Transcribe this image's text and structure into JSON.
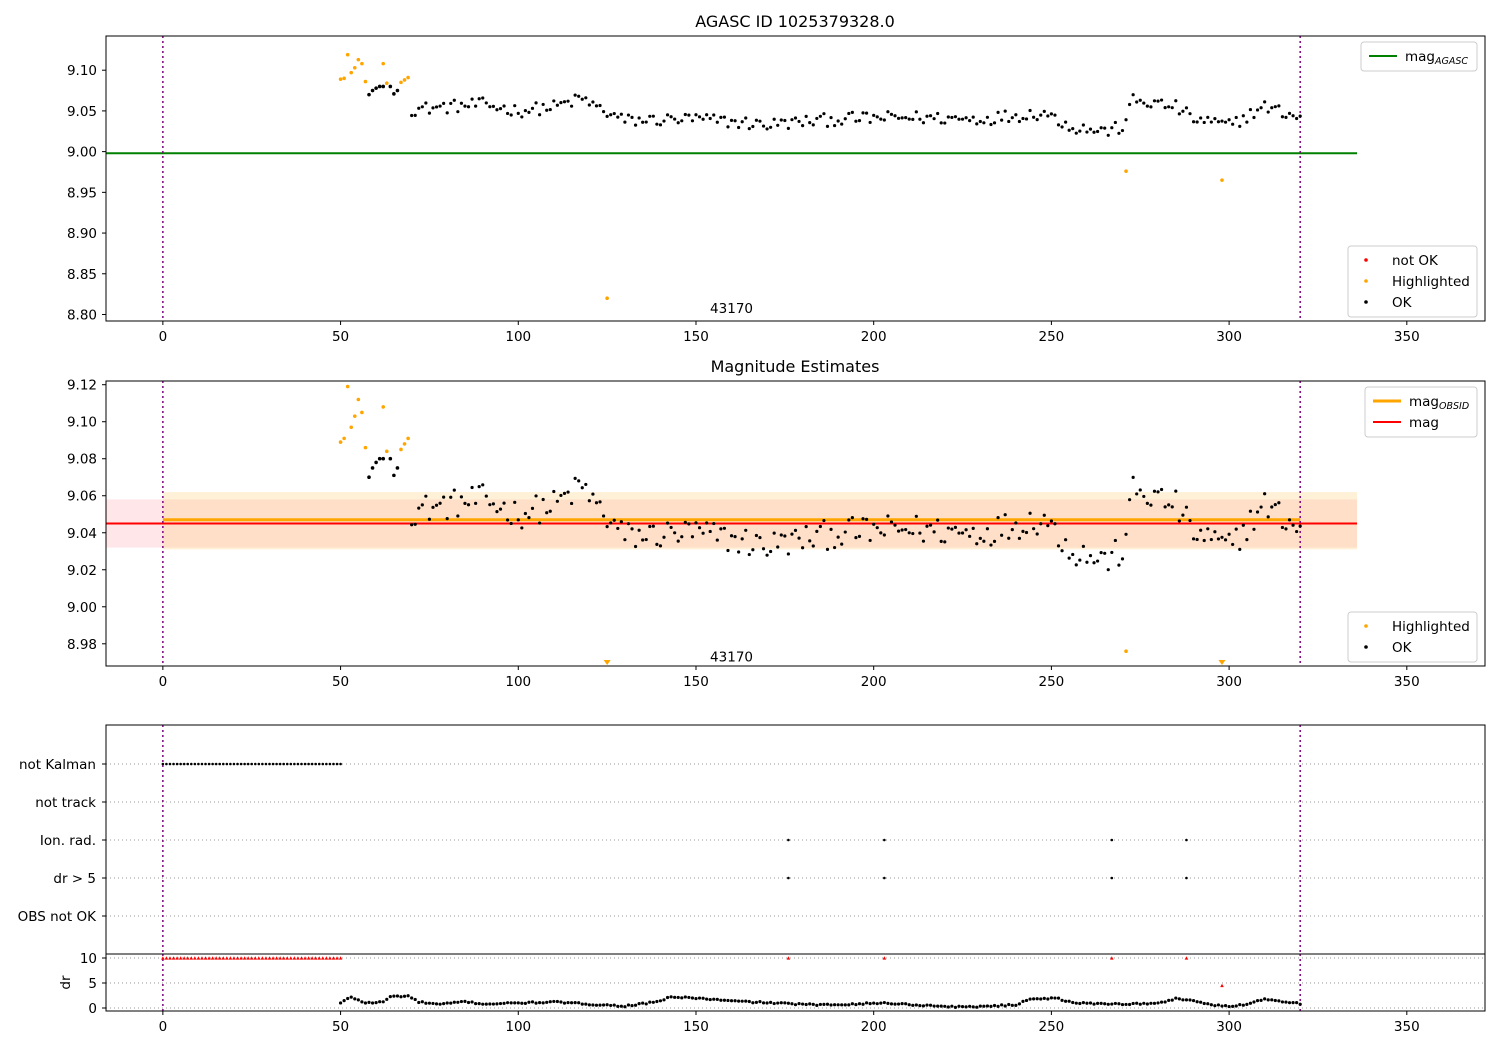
{
  "figure": {
    "title_top": "AGASC ID 1025379328.0",
    "title_mid": "Magnitude Estimates",
    "annotation": "43170"
  },
  "chart_data": [
    {
      "id": "top",
      "type": "scatter",
      "title": "AGASC ID 1025379328.0",
      "xlim": [
        -16,
        372
      ],
      "ylim": [
        8.792,
        9.142
      ],
      "xticks": [
        0,
        50,
        100,
        150,
        200,
        250,
        300,
        350
      ],
      "yticks": [
        8.8,
        8.85,
        8.9,
        8.95,
        9.0,
        9.05,
        9.1
      ],
      "vlines": [
        0,
        320
      ],
      "hlines": [
        {
          "name": "mag_AGASC",
          "y": 8.998,
          "x0": -16,
          "x1": 336,
          "color": "#008000"
        }
      ],
      "annotation": {
        "text": "43170",
        "x": 160,
        "y": 8.808
      },
      "legend_lines": [
        {
          "label": "mag",
          "sub": "AGASC",
          "color": "#008000"
        }
      ],
      "legend_markers": [
        {
          "label": "not OK",
          "color": "#ff0000"
        },
        {
          "label": "Highlighted",
          "color": "#ffa500"
        },
        {
          "label": "OK",
          "color": "#000000"
        }
      ],
      "series": [
        {
          "name": "Highlighted",
          "color": "#ffa500",
          "x": [
            50,
            51,
            52,
            53,
            54,
            55,
            56,
            57,
            62,
            63,
            67,
            68,
            69,
            125,
            271,
            298
          ],
          "y": [
            9.089,
            9.09,
            9.119,
            9.097,
            9.103,
            9.113,
            9.108,
            9.086,
            9.108,
            9.084,
            9.085,
            9.088,
            9.091,
            8.82,
            8.976,
            8.965
          ]
        },
        {
          "name": "OK",
          "color": "#000000",
          "x": [
            58,
            59,
            60,
            61,
            62,
            64,
            65,
            66
          ],
          "y": [
            9.07,
            9.075,
            9.078,
            9.08,
            9.08,
            9.08,
            9.071,
            9.075
          ]
        }
      ],
      "ok_trend": {
        "color": "#000000",
        "x_from": 70,
        "x_to": 320,
        "step": 1,
        "knots": [
          [
            70,
            9.052
          ],
          [
            90,
            9.058
          ],
          [
            100,
            9.05
          ],
          [
            110,
            9.055
          ],
          [
            118,
            9.065
          ],
          [
            124,
            9.05
          ],
          [
            130,
            9.038
          ],
          [
            150,
            9.04
          ],
          [
            170,
            9.033
          ],
          [
            190,
            9.04
          ],
          [
            210,
            9.042
          ],
          [
            230,
            9.04
          ],
          [
            248,
            9.048
          ],
          [
            256,
            9.03
          ],
          [
            265,
            9.025
          ],
          [
            270,
            9.03
          ],
          [
            273,
            9.063
          ],
          [
            285,
            9.055
          ],
          [
            290,
            9.04
          ],
          [
            300,
            9.032
          ],
          [
            310,
            9.055
          ],
          [
            320,
            9.042
          ]
        ],
        "jitter": 0.008
      }
    },
    {
      "id": "middle",
      "type": "scatter",
      "title": "Magnitude Estimates",
      "xlim": [
        -16,
        372
      ],
      "ylim": [
        8.968,
        9.122
      ],
      "xticks": [
        0,
        50,
        100,
        150,
        200,
        250,
        300,
        350
      ],
      "yticks": [
        8.98,
        9.0,
        9.02,
        9.04,
        9.06,
        9.08,
        9.1,
        9.12
      ],
      "vlines": [
        0,
        320
      ],
      "bands": [
        {
          "x0": -16,
          "x1": 336,
          "y0": 9.032,
          "y1": 9.058,
          "color": "#ffb6c1",
          "opacity": 0.35
        },
        {
          "x0": 0,
          "x1": 336,
          "y0": 9.031,
          "y1": 9.062,
          "color": "#ffd27f",
          "opacity": 0.3
        }
      ],
      "hlines": [
        {
          "name": "mag_OBSID",
          "y": 9.047,
          "x0": 0,
          "x1": 320,
          "color": "#ffa500",
          "width": 3
        },
        {
          "name": "mag",
          "y": 9.045,
          "x0": -16,
          "x1": 336,
          "color": "#ff0000",
          "width": 2
        }
      ],
      "annotation": {
        "text": "43170",
        "x": 160,
        "y": 8.973
      },
      "legend_lines": [
        {
          "label": "mag",
          "sub": "OBSID",
          "color": "#ffa500"
        },
        {
          "label": "mag",
          "sub": "",
          "color": "#ff0000"
        }
      ],
      "legend_markers": [
        {
          "label": "Highlighted",
          "color": "#ffa500"
        },
        {
          "label": "OK",
          "color": "#000000"
        }
      ],
      "series": [
        {
          "name": "Highlighted",
          "color": "#ffa500",
          "x": [
            50,
            51,
            52,
            53,
            54,
            55,
            56,
            57,
            62,
            63,
            67,
            68,
            69,
            271
          ],
          "y": [
            9.089,
            9.091,
            9.119,
            9.097,
            9.103,
            9.112,
            9.105,
            9.086,
            9.108,
            9.084,
            9.085,
            9.088,
            9.091,
            8.976
          ]
        },
        {
          "name": "OK",
          "color": "#000000",
          "x": [
            58,
            59,
            60,
            61,
            62,
            64,
            65,
            66
          ],
          "y": [
            9.07,
            9.075,
            9.078,
            9.08,
            9.08,
            9.08,
            9.071,
            9.075
          ]
        }
      ],
      "clipped_markers": {
        "color": "#ffa500",
        "x": [
          125,
          298
        ]
      },
      "ok_trend": {
        "color": "#000000",
        "x_from": 70,
        "x_to": 320,
        "step": 1,
        "knots": [
          [
            70,
            9.052
          ],
          [
            90,
            9.058
          ],
          [
            100,
            9.05
          ],
          [
            110,
            9.055
          ],
          [
            118,
            9.065
          ],
          [
            124,
            9.05
          ],
          [
            130,
            9.038
          ],
          [
            150,
            9.04
          ],
          [
            170,
            9.033
          ],
          [
            190,
            9.04
          ],
          [
            210,
            9.042
          ],
          [
            230,
            9.04
          ],
          [
            248,
            9.048
          ],
          [
            256,
            9.03
          ],
          [
            265,
            9.025
          ],
          [
            270,
            9.03
          ],
          [
            273,
            9.063
          ],
          [
            285,
            9.055
          ],
          [
            290,
            9.04
          ],
          [
            300,
            9.032
          ],
          [
            310,
            9.055
          ],
          [
            320,
            9.042
          ]
        ],
        "jitter": 0.008
      }
    },
    {
      "id": "flags",
      "type": "scatter",
      "xlim": [
        -16,
        372
      ],
      "categories": [
        "not Kalman",
        "not track",
        "Ion. rad.",
        "dr > 5",
        "OBS not OK"
      ],
      "vlines": [
        0,
        320
      ],
      "series": [
        {
          "name": "not Kalman",
          "color": "#000000",
          "x_range": [
            0,
            50
          ]
        },
        {
          "name": "Ion. rad.",
          "color": "#000000",
          "x": [
            176,
            203,
            267,
            288
          ]
        },
        {
          "name": "dr > 5",
          "color": "#000000",
          "x": [
            176,
            203,
            267,
            288
          ]
        }
      ]
    },
    {
      "id": "dr",
      "type": "scatter",
      "ylabel": "dr",
      "xlim": [
        -16,
        372
      ],
      "ylim": [
        -0.6,
        10.8
      ],
      "xticks": [
        0,
        50,
        100,
        150,
        200,
        250,
        300,
        350
      ],
      "yticks": [
        0,
        5,
        10
      ],
      "vlines": [
        0,
        320
      ],
      "series": [
        {
          "name": "dr > 5",
          "color": "#ff0000",
          "x_range": [
            0,
            50
          ],
          "y_const": 10
        },
        {
          "name": "dr > 5 extra",
          "color": "#ff0000",
          "x": [
            176,
            203,
            267,
            288,
            298
          ],
          "y": [
            10,
            10,
            10,
            10,
            4.5
          ]
        }
      ],
      "ok_trend": {
        "color": "#000000",
        "x_from": 50,
        "x_to": 320,
        "step": 1,
        "knots": [
          [
            50,
            1.0
          ],
          [
            53,
            2.2
          ],
          [
            57,
            1.0
          ],
          [
            62,
            1.2
          ],
          [
            64,
            2.3
          ],
          [
            69,
            2.4
          ],
          [
            72,
            1.2
          ],
          [
            78,
            0.7
          ],
          [
            85,
            1.3
          ],
          [
            90,
            0.8
          ],
          [
            100,
            1.0
          ],
          [
            110,
            1.2
          ],
          [
            124,
            0.6
          ],
          [
            130,
            0.4
          ],
          [
            140,
            1.3
          ],
          [
            142,
            2.2
          ],
          [
            150,
            2.0
          ],
          [
            160,
            1.4
          ],
          [
            175,
            0.9
          ],
          [
            185,
            0.6
          ],
          [
            203,
            1.0
          ],
          [
            215,
            0.5
          ],
          [
            225,
            0.2
          ],
          [
            240,
            0.6
          ],
          [
            244,
            1.9
          ],
          [
            252,
            1.9
          ],
          [
            256,
            1.0
          ],
          [
            270,
            0.8
          ],
          [
            280,
            0.9
          ],
          [
            285,
            1.9
          ],
          [
            290,
            1.5
          ],
          [
            295,
            0.6
          ],
          [
            300,
            0.3
          ],
          [
            305,
            0.8
          ],
          [
            310,
            1.8
          ],
          [
            320,
            0.9
          ]
        ],
        "jitter": 0.15
      }
    }
  ]
}
